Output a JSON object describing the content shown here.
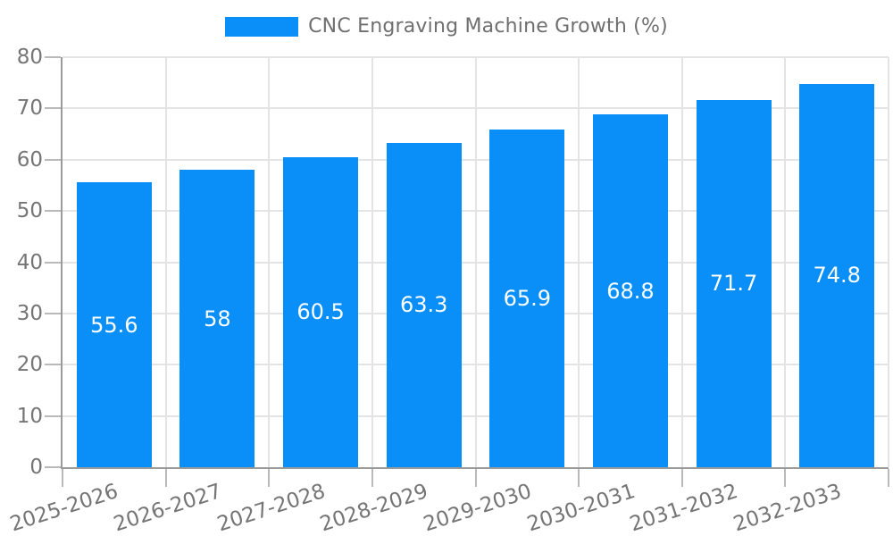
{
  "legend": {
    "label": "CNC Engraving Machine Growth (%)",
    "swatch_color": "#0a8ff9"
  },
  "chart_data": {
    "type": "bar",
    "title": "CNC Engraving Machine Growth (%)",
    "categories": [
      "2025-2026",
      "2026-2027",
      "2027-2028",
      "2028-2029",
      "2029-2030",
      "2030-2031",
      "2031-2032",
      "2032-2033"
    ],
    "values": [
      55.6,
      58,
      60.5,
      63.3,
      65.9,
      68.8,
      71.7,
      74.8
    ],
    "value_labels": [
      "55.6",
      "58",
      "60.5",
      "63.3",
      "65.9",
      "68.8",
      "71.7",
      "74.8"
    ],
    "ylim": [
      0,
      80
    ],
    "ytick_step": 10,
    "ytick_labels": [
      "0",
      "10",
      "20",
      "30",
      "40",
      "50",
      "60",
      "70",
      "80"
    ],
    "xlabel": "",
    "ylabel": "",
    "grid": true,
    "legend_position": "top",
    "bar_color": "#0a8ff9",
    "value_label_color": "#ffffff",
    "axis_color": "#9a9a9a",
    "gridline_color": "#e4e4e4",
    "tick_label_color": "#757575"
  }
}
